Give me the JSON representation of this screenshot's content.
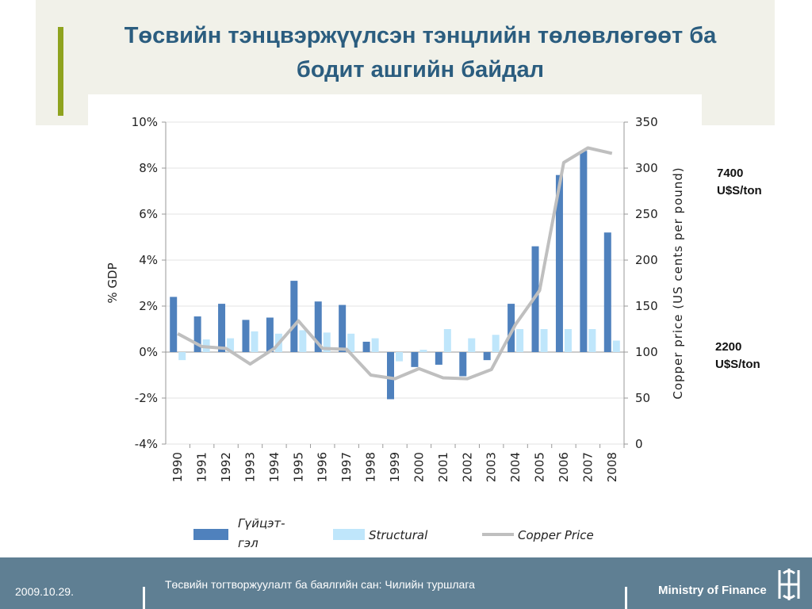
{
  "slide": {
    "title_line1": "Төсвийн тэнцвэржүүлсэн тэнцлийн төлөвлөгөөт ба",
    "title_line2": "бодит  ашгийн байдал",
    "annotation_top": [
      "7400",
      "U$S/ton"
    ],
    "annotation_bottom": [
      "2200",
      "U$S/ton"
    ]
  },
  "footer": {
    "date": "2009.10.29.",
    "center": "Төсвийн тогтворжуулалт ба баялгийн сан: Чилийн туршлага",
    "right": "Ministry of Finance"
  },
  "colors": {
    "actual": "#4f81bd",
    "structural": "#bfe6fb",
    "copper": "#bfbfbf",
    "title": "#2b5d7f",
    "footer": "#5f7f93",
    "accent_bar": "#8fa31f"
  },
  "chart_data": {
    "type": "bar",
    "categories": [
      "1990",
      "1991",
      "1992",
      "1993",
      "1994",
      "1995",
      "1996",
      "1997",
      "1998",
      "1999",
      "2000",
      "2001",
      "2002",
      "2003",
      "2004",
      "2005",
      "2006",
      "2007",
      "2008"
    ],
    "series": [
      {
        "name": "Гүйцэт-гэл",
        "type": "bar",
        "axis": "left",
        "values": [
          2.4,
          1.55,
          2.1,
          1.4,
          1.5,
          3.1,
          2.2,
          2.05,
          0.45,
          -2.05,
          -0.65,
          -0.55,
          -1.05,
          -0.35,
          2.1,
          4.6,
          7.7,
          8.75,
          5.2
        ]
      },
      {
        "name": "Structural",
        "type": "bar",
        "axis": "left",
        "values": [
          -0.35,
          0.55,
          0.6,
          0.9,
          0.8,
          0.95,
          0.85,
          0.8,
          0.6,
          -0.4,
          0.1,
          1.0,
          0.6,
          0.75,
          1.0,
          1.0,
          1.0,
          1.0,
          0.5
        ]
      },
      {
        "name": "Copper Price",
        "type": "line",
        "axis": "right",
        "values": [
          120,
          106,
          104,
          87,
          104,
          134,
          104,
          103,
          75,
          71,
          82,
          72,
          71,
          81,
          130,
          167,
          306,
          322,
          316
        ]
      }
    ],
    "y_left": {
      "label": "% GDP",
      "min": -4,
      "max": 10,
      "ticks": [
        "-4%",
        "-2%",
        "0%",
        "2%",
        "4%",
        "6%",
        "8%",
        "10%"
      ]
    },
    "y_right": {
      "label": "Copper price (US cents per pound)",
      "min": 0,
      "max": 350,
      "ticks": [
        "0",
        "50",
        "100",
        "150",
        "200",
        "250",
        "300",
        "350"
      ]
    },
    "grid": true,
    "legend": {
      "placement": "bottom",
      "labels": [
        "Гүйцэт-гэл",
        "Structural",
        "Copper Price"
      ]
    }
  }
}
